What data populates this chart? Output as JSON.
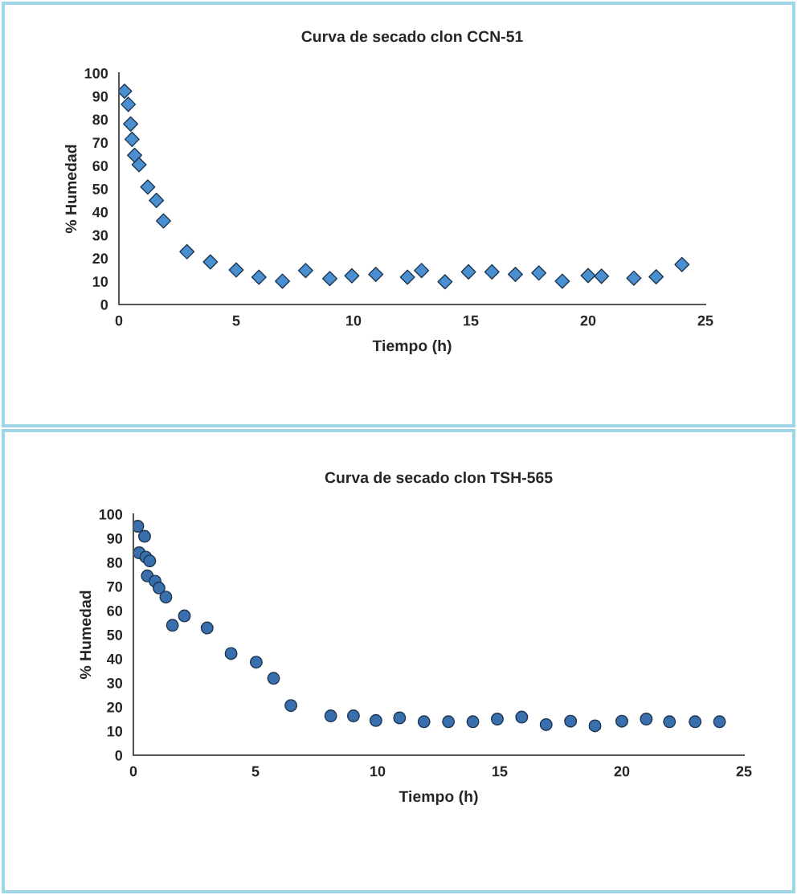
{
  "chart_data": [
    {
      "type": "scatter",
      "title": "Curva de secado clon CCN-51",
      "xlabel": "Tiempo (h)",
      "ylabel": "% Humedad",
      "xlim": [
        0,
        25
      ],
      "xticks": [
        0,
        5,
        10,
        15,
        20,
        25
      ],
      "ylim": [
        0,
        100
      ],
      "yticks": [
        0,
        10,
        20,
        30,
        40,
        50,
        60,
        70,
        80,
        90,
        100
      ],
      "grid": false,
      "legend": false,
      "marker": "diamond",
      "series": [
        {
          "color": "#4a90d0",
          "x": [
            0.24,
            0.4,
            0.5,
            0.56,
            0.67,
            0.86,
            1.23,
            1.6,
            1.9,
            2.9,
            3.9,
            5.0,
            5.97,
            6.97,
            7.96,
            8.99,
            9.93,
            10.95,
            12.3,
            12.9,
            13.9,
            14.9,
            15.9,
            16.9,
            17.9,
            18.9,
            20.0,
            20.57,
            21.95,
            22.9,
            24.0
          ],
          "values": [
            92.2,
            86.5,
            78,
            71.4,
            64.5,
            60.4,
            50.8,
            45,
            36.1,
            22.8,
            18.4,
            14.9,
            11.8,
            10.1,
            14.7,
            11.2,
            12.4,
            13,
            11.8,
            14.7,
            9.8,
            14.1,
            14.1,
            13,
            13.6,
            10.1,
            12.5,
            12.2,
            11.4,
            12,
            17.3
          ]
        }
      ]
    },
    {
      "type": "scatter",
      "title": "Curva de secado clon TSH-565",
      "xlabel": "Tiempo (h)",
      "ylabel": "% Humedad",
      "xlim": [
        0,
        25
      ],
      "xticks": [
        0,
        5,
        10,
        15,
        20,
        25
      ],
      "ylim": [
        0,
        100
      ],
      "yticks": [
        0,
        10,
        20,
        30,
        40,
        50,
        60,
        70,
        80,
        90,
        100
      ],
      "grid": false,
      "legend": false,
      "marker": "circle",
      "series": [
        {
          "color": "#3a6fae",
          "x": [
            0.18,
            0.46,
            0.24,
            0.51,
            0.67,
            0.57,
            0.89,
            1.05,
            1.33,
            1.6,
            2.09,
            3.02,
            4.0,
            5.03,
            5.74,
            6.45,
            8.08,
            9.01,
            9.93,
            10.9,
            11.9,
            12.9,
            13.9,
            14.9,
            15.9,
            16.9,
            17.9,
            18.9,
            20.0,
            21.0,
            21.95,
            23.0,
            24.0
          ],
          "values": [
            95,
            90.8,
            84,
            82.2,
            80.6,
            74.4,
            72.2,
            69.4,
            65.6,
            53.9,
            57.8,
            52.8,
            42.2,
            38.6,
            31.9,
            20.6,
            16.3,
            16.3,
            14.4,
            15.5,
            13.9,
            13.9,
            13.9,
            15,
            15.8,
            12.7,
            14.1,
            12.2,
            14.1,
            15,
            13.9,
            13.9,
            13.9
          ]
        }
      ]
    }
  ]
}
